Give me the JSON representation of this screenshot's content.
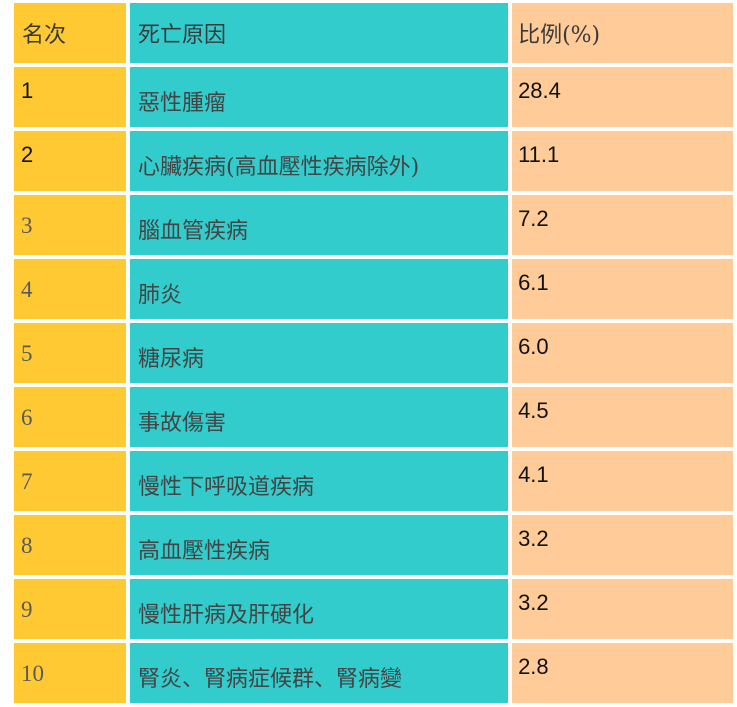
{
  "table": {
    "headers": [
      "名次",
      "死亡原因",
      "比例(%)"
    ],
    "rows": [
      {
        "rank": "1",
        "cause": "惡性腫瘤",
        "pct": "28.4"
      },
      {
        "rank": "2",
        "cause": "心臟疾病(高血壓性疾病除外)",
        "pct": "11.1"
      },
      {
        "rank": "3",
        "cause": "腦血管疾病",
        "pct": "7.2"
      },
      {
        "rank": "4",
        "cause": "肺炎",
        "pct": "6.1"
      },
      {
        "rank": "5",
        "cause": "糖尿病",
        "pct": "6.0"
      },
      {
        "rank": "6",
        "cause": "事故傷害",
        "pct": "4.5"
      },
      {
        "rank": "7",
        "cause": "慢性下呼吸道疾病",
        "pct": "4.1"
      },
      {
        "rank": "8",
        "cause": "高血壓性疾病",
        "pct": "3.2"
      },
      {
        "rank": "9",
        "cause": "慢性肝病及肝硬化",
        "pct": "3.2"
      },
      {
        "rank": "10",
        "cause": "腎炎、腎病症候群、腎病變",
        "pct": "2.8"
      }
    ]
  },
  "colors": {
    "rank_column": "#ffc933",
    "cause_column": "#33cccc",
    "percent_column": "#ffcc99"
  }
}
